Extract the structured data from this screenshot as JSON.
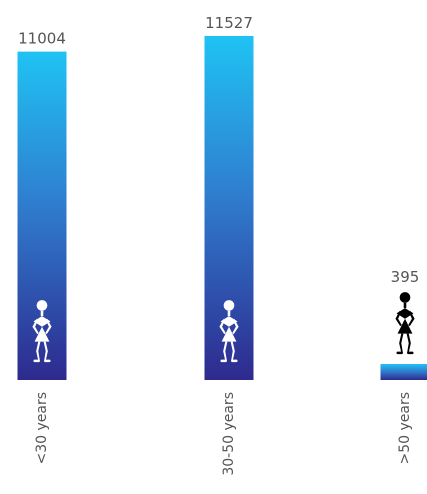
{
  "chart_data": {
    "type": "bar",
    "categories": [
      "<30 years",
      "30-50 years",
      ">50 years"
    ],
    "values": [
      11004,
      11527,
      395
    ],
    "title": "",
    "xlabel": "",
    "ylabel": "",
    "ylim": [
      0,
      11527
    ],
    "grid": false,
    "legend": "none",
    "icon": "woman-figure-icon",
    "colors": {
      "bar_top": "#1FC3F3",
      "bar_mid": "#2F7FD0",
      "bar_bottom": "#2E2A8E",
      "label": "#555555",
      "icon_on_bar": "#ffffff",
      "icon_above_bar": "#000000"
    }
  }
}
